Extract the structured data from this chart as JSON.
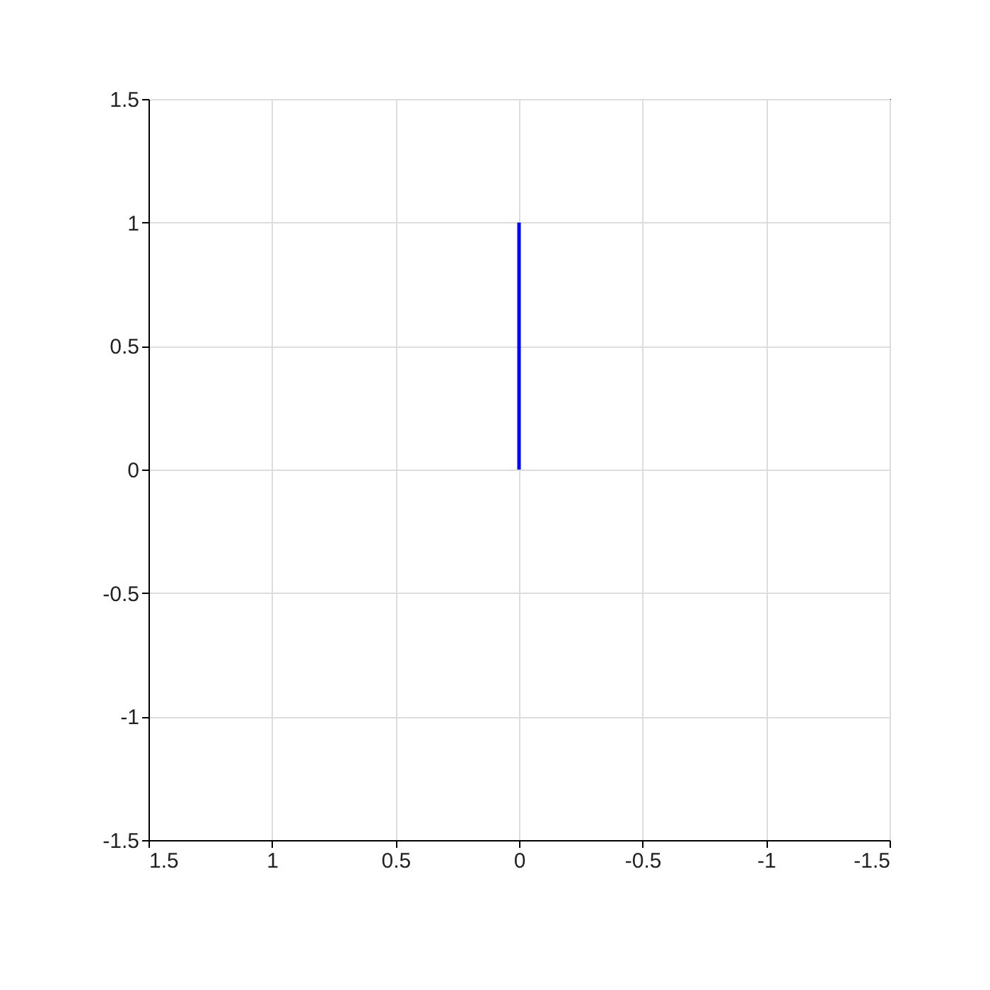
{
  "chart_data": {
    "type": "line",
    "x": [
      0,
      0
    ],
    "values": [
      0,
      1
    ],
    "color": "#0000ff",
    "xlim": [
      1.5,
      -1.5
    ],
    "ylim": [
      -1.5,
      1.5
    ],
    "xticks": [
      1.5,
      1,
      0.5,
      0,
      -0.5,
      -1,
      -1.5
    ],
    "yticks": [
      -1.5,
      -1,
      -0.5,
      0,
      0.5,
      1,
      1.5
    ],
    "grid": true
  }
}
